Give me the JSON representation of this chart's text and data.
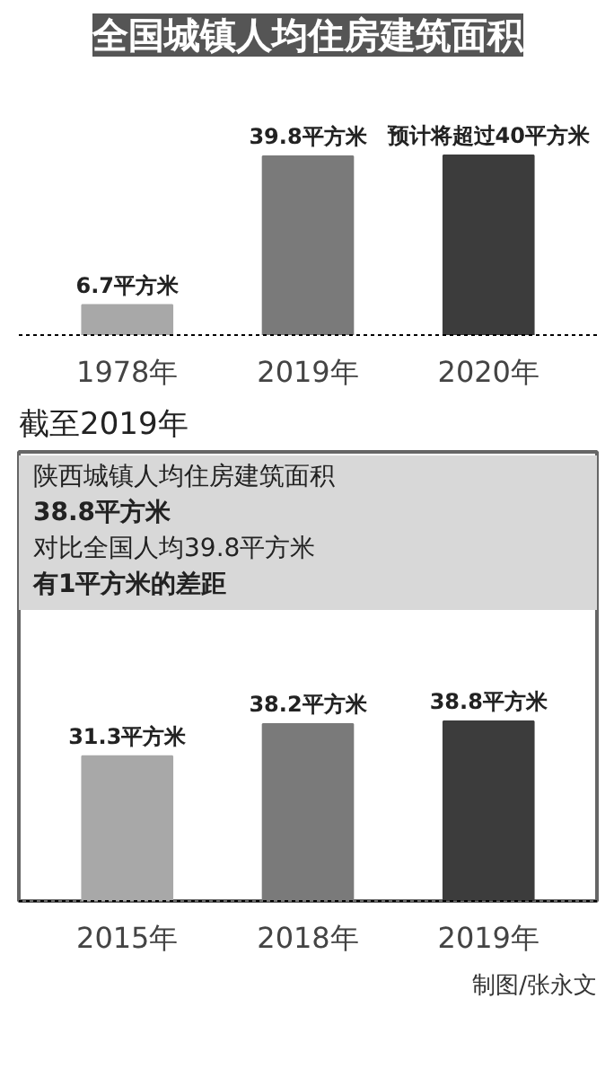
{
  "chart_data": [
    {
      "type": "bar",
      "title": "全国城镇人均住房建筑面积",
      "categories": [
        "1978年",
        "2019年",
        "2020年"
      ],
      "values": [
        6.7,
        39.8,
        40
      ],
      "colors": [
        "#a8a8a8",
        "#7a7a7a",
        "#3c3c3c"
      ],
      "value_labels": [
        "6.7平方米",
        "39.8平方米",
        "预计将超过40平方米"
      ]
    },
    {
      "type": "bar",
      "title": "截至2019年",
      "categories": [
        "2015年",
        "2018年",
        "2019年"
      ],
      "values": [
        31.3,
        38.2,
        38.8
      ],
      "colors": [
        "#a8a8a8",
        "#7a7a7a",
        "#3c3c3c"
      ],
      "value_labels": [
        "31.3平方米",
        "38.2平方米",
        "38.8平方米"
      ],
      "annotations": [
        "陕西城镇人均住房建筑面积",
        "38.8平方米",
        "对比全国人均39.8平方米",
        "有1平方米的差距",
        "制图/张永文"
      ]
    }
  ]
}
